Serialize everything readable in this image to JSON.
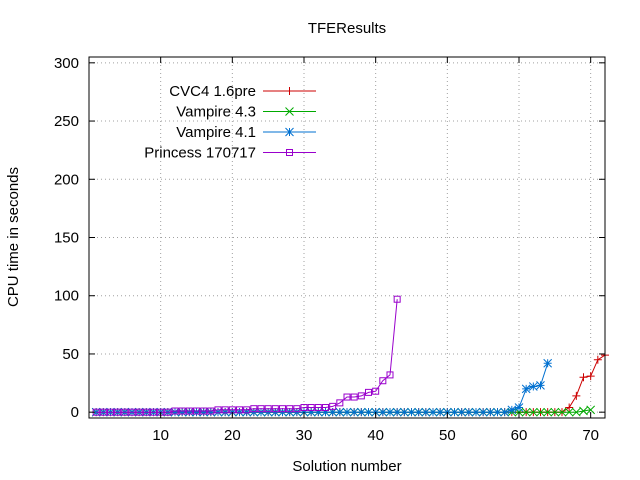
{
  "chart_data": {
    "type": "line",
    "title": "TFEResults",
    "xlabel": "Solution number",
    "ylabel": "CPU time in seconds",
    "xlim": [
      0,
      72
    ],
    "ylim": [
      -5,
      305
    ],
    "xticks": [
      10,
      20,
      30,
      40,
      50,
      60,
      70
    ],
    "yticks": [
      0,
      50,
      100,
      150,
      200,
      250,
      300
    ],
    "grid": true,
    "legend_position": "top-left",
    "series": [
      {
        "name": "CVC4 1.6pre",
        "color": "#cc0000",
        "marker": "plus",
        "x": [
          1,
          2,
          3,
          4,
          5,
          6,
          7,
          8,
          9,
          10,
          11,
          12,
          13,
          14,
          15,
          16,
          17,
          18,
          19,
          20,
          21,
          22,
          23,
          24,
          25,
          26,
          27,
          28,
          29,
          30,
          31,
          32,
          33,
          34,
          35,
          36,
          37,
          38,
          39,
          40,
          41,
          42,
          43,
          44,
          45,
          46,
          47,
          48,
          49,
          50,
          51,
          52,
          53,
          54,
          55,
          56,
          57,
          58,
          59,
          60,
          61,
          62,
          63,
          64,
          65,
          66,
          67,
          68,
          69,
          70,
          71,
          72
        ],
        "y": [
          0,
          0,
          0,
          0,
          0,
          0,
          0,
          0,
          0,
          0,
          0,
          0,
          0,
          0,
          0,
          0,
          0,
          0,
          0,
          0,
          0,
          0,
          0,
          0,
          0,
          0,
          0,
          0,
          0,
          0,
          0,
          0,
          0,
          0,
          0,
          0,
          0,
          0,
          0,
          0,
          0,
          0,
          0,
          0,
          0,
          0,
          0,
          0,
          0,
          0,
          0,
          0,
          0,
          0,
          0,
          0,
          0,
          0,
          0,
          0,
          0,
          0,
          0,
          0,
          0,
          0,
          4,
          14,
          30,
          31,
          45,
          49
        ]
      },
      {
        "name": "Vampire 4.3",
        "color": "#00aa00",
        "marker": "cross",
        "x": [
          1,
          2,
          3,
          4,
          5,
          6,
          7,
          8,
          9,
          10,
          11,
          12,
          13,
          14,
          15,
          16,
          17,
          18,
          19,
          20,
          21,
          22,
          23,
          24,
          25,
          26,
          27,
          28,
          29,
          30,
          31,
          32,
          33,
          34,
          35,
          36,
          37,
          38,
          39,
          40,
          41,
          42,
          43,
          44,
          45,
          46,
          47,
          48,
          49,
          50,
          51,
          52,
          53,
          54,
          55,
          56,
          57,
          58,
          59,
          60,
          61,
          62,
          63,
          64,
          65,
          66,
          67,
          68,
          69,
          70
        ],
        "y": [
          0,
          0,
          0,
          0,
          0,
          0,
          0,
          0,
          0,
          0,
          0,
          0,
          0,
          0,
          0,
          0,
          0,
          0,
          0,
          0,
          0,
          0,
          0,
          0,
          0,
          0,
          0,
          0,
          0,
          0,
          0,
          0,
          0,
          0,
          0,
          0,
          0,
          0,
          0,
          0,
          0,
          0,
          0,
          0,
          0,
          0,
          0,
          0,
          0,
          0,
          0,
          0,
          0,
          0,
          0,
          0,
          0,
          0,
          0,
          0,
          0,
          0,
          0,
          0,
          0,
          0,
          0,
          0,
          1,
          2
        ]
      },
      {
        "name": "Vampire 4.1",
        "color": "#0070d0",
        "marker": "star",
        "x": [
          1,
          2,
          3,
          4,
          5,
          6,
          7,
          8,
          9,
          10,
          11,
          12,
          13,
          14,
          15,
          16,
          17,
          18,
          19,
          20,
          21,
          22,
          23,
          24,
          25,
          26,
          27,
          28,
          29,
          30,
          31,
          32,
          33,
          34,
          35,
          36,
          37,
          38,
          39,
          40,
          41,
          42,
          43,
          44,
          45,
          46,
          47,
          48,
          49,
          50,
          51,
          52,
          53,
          54,
          55,
          56,
          57,
          58,
          59,
          60,
          61,
          62,
          63,
          64
        ],
        "y": [
          0,
          0,
          0,
          0,
          0,
          0,
          0,
          0,
          0,
          0,
          0,
          0,
          0,
          0,
          0,
          0,
          0,
          0,
          0,
          0,
          0,
          0,
          0,
          0,
          0,
          0,
          0,
          0,
          0,
          0,
          0,
          0,
          0,
          0,
          0,
          0,
          0,
          0,
          0,
          0,
          0,
          0,
          0,
          0,
          0,
          0,
          0,
          0,
          0,
          0,
          0,
          0,
          0,
          0,
          0,
          0,
          0,
          0,
          2,
          4,
          20,
          22,
          23,
          42
        ]
      },
      {
        "name": "Princess 170717",
        "color": "#9900cc",
        "marker": "square",
        "x": [
          1,
          2,
          3,
          4,
          5,
          6,
          7,
          8,
          9,
          10,
          11,
          12,
          13,
          14,
          15,
          16,
          17,
          18,
          19,
          20,
          21,
          22,
          23,
          24,
          25,
          26,
          27,
          28,
          29,
          30,
          31,
          32,
          33,
          34,
          35,
          36,
          37,
          38,
          39,
          40,
          41,
          42,
          43
        ],
        "y": [
          0,
          0,
          0,
          0,
          0,
          0,
          0,
          0,
          0,
          0,
          0,
          1,
          1,
          1,
          1,
          1,
          1,
          2,
          2,
          2,
          2,
          2,
          3,
          3,
          3,
          3,
          3,
          3,
          3,
          4,
          4,
          4,
          4,
          5,
          8,
          13,
          13,
          14,
          17,
          18,
          27,
          32,
          97
        ]
      }
    ]
  }
}
